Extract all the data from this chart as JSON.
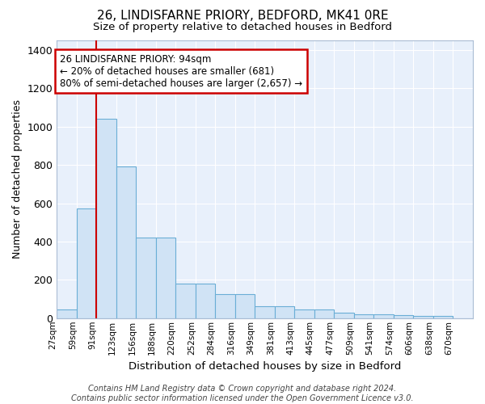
{
  "title": "26, LINDISFARNE PRIORY, BEDFORD, MK41 0RE",
  "subtitle": "Size of property relative to detached houses in Bedford",
  "xlabel": "Distribution of detached houses by size in Bedford",
  "ylabel": "Number of detached properties",
  "bar_color": "#d0e3f5",
  "bar_edge_color": "#6aaed6",
  "bg_color": "#e8f0fb",
  "grid_color": "#ffffff",
  "categories": [
    "27sqm",
    "59sqm",
    "91sqm",
    "123sqm",
    "156sqm",
    "188sqm",
    "220sqm",
    "252sqm",
    "284sqm",
    "316sqm",
    "349sqm",
    "381sqm",
    "413sqm",
    "445sqm",
    "477sqm",
    "509sqm",
    "541sqm",
    "574sqm",
    "606sqm",
    "638sqm",
    "670sqm"
  ],
  "bin_edges": [
    0,
    1,
    2,
    3,
    4,
    5,
    6,
    7,
    8,
    9,
    10,
    11,
    12,
    13,
    14,
    15,
    16,
    17,
    18,
    19,
    20,
    21
  ],
  "values": [
    47,
    572,
    1040,
    790,
    420,
    420,
    182,
    182,
    127,
    127,
    62,
    62,
    47,
    47,
    27,
    22,
    22,
    15,
    10,
    10,
    0
  ],
  "red_line_x": 2,
  "annotation_text": "26 LINDISFARNE PRIORY: 94sqm\n← 20% of detached houses are smaller (681)\n80% of semi-detached houses are larger (2,657) →",
  "annotation_box_color": "#ffffff",
  "annotation_box_edge": "#cc0000",
  "red_line_color": "#cc0000",
  "ylim": [
    0,
    1450
  ],
  "yticks": [
    0,
    200,
    400,
    600,
    800,
    1000,
    1200,
    1400
  ],
  "footer": "Contains HM Land Registry data © Crown copyright and database right 2024.\nContains public sector information licensed under the Open Government Licence v3.0.",
  "fig_bg": "#ffffff"
}
